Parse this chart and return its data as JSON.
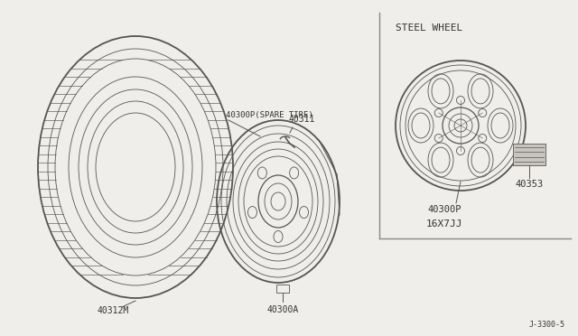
{
  "bg_color": "#f0eeea",
  "line_color": "#555555",
  "text_color": "#333333",
  "steel_wheel_label": "STEEL WHEEL",
  "part_40300P": "40300P",
  "part_40300P_spare": "40300P(SPARE TIRE)",
  "part_40311": "40311",
  "part_40312M": "40312M",
  "part_40300A": "40300A",
  "part_40353": "40353",
  "size_label": "16X7JJ",
  "diagram_ref": "J-3300-5"
}
